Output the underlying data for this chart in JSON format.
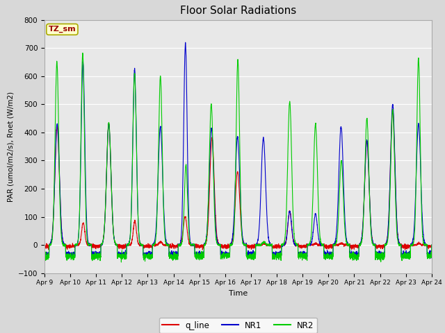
{
  "title": "Floor Solar Radiations",
  "xlabel": "Time",
  "ylabel": "PAR (umol/m2/s), Rnet (W/m2)",
  "ylim": [
    -100,
    800
  ],
  "yticks": [
    -100,
    0,
    100,
    200,
    300,
    400,
    500,
    600,
    700,
    800
  ],
  "xtick_labels": [
    "Apr 9",
    "Apr 10",
    "Apr 11",
    "Apr 12",
    "Apr 13",
    "Apr 14",
    "Apr 15",
    "Apr 16",
    "Apr 17",
    "Apr 18",
    "Apr 19",
    "Apr 20",
    "Apr 21",
    "Apr 22",
    "Apr 23",
    "Apr 24"
  ],
  "annotation_text": "TZ_sm",
  "annotation_facecolor": "#FFFFCC",
  "annotation_edgecolor": "#AAAA00",
  "line_colors": {
    "q_line": "#dd0000",
    "NR1": "#0000cc",
    "NR2": "#00cc00"
  },
  "legend_labels": [
    "q_line",
    "NR1",
    "NR2"
  ],
  "bg_color": "#d8d8d8",
  "plot_bg_color": "#e8e8e8",
  "num_days": 15,
  "n_points": 4000,
  "figsize": [
    6.4,
    4.8
  ],
  "dpi": 100
}
